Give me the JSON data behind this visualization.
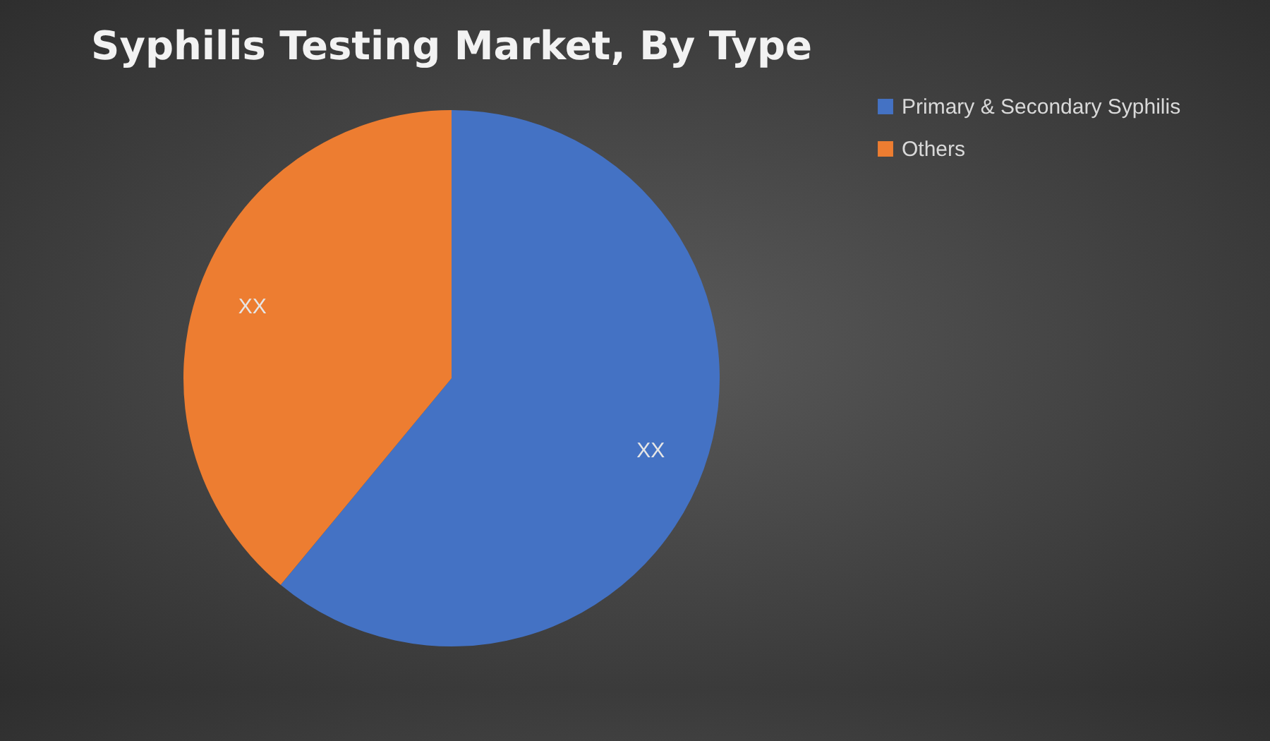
{
  "chart_data": {
    "type": "pie",
    "title": "Syphilis Testing Market, By Type",
    "categories": [
      "Primary & Secondary Syphilis",
      "Others"
    ],
    "values": [
      61,
      39
    ],
    "colors": [
      "#4472c4",
      "#ed7d31"
    ],
    "value_labels": [
      "XX",
      "XX"
    ],
    "legend": "right"
  }
}
